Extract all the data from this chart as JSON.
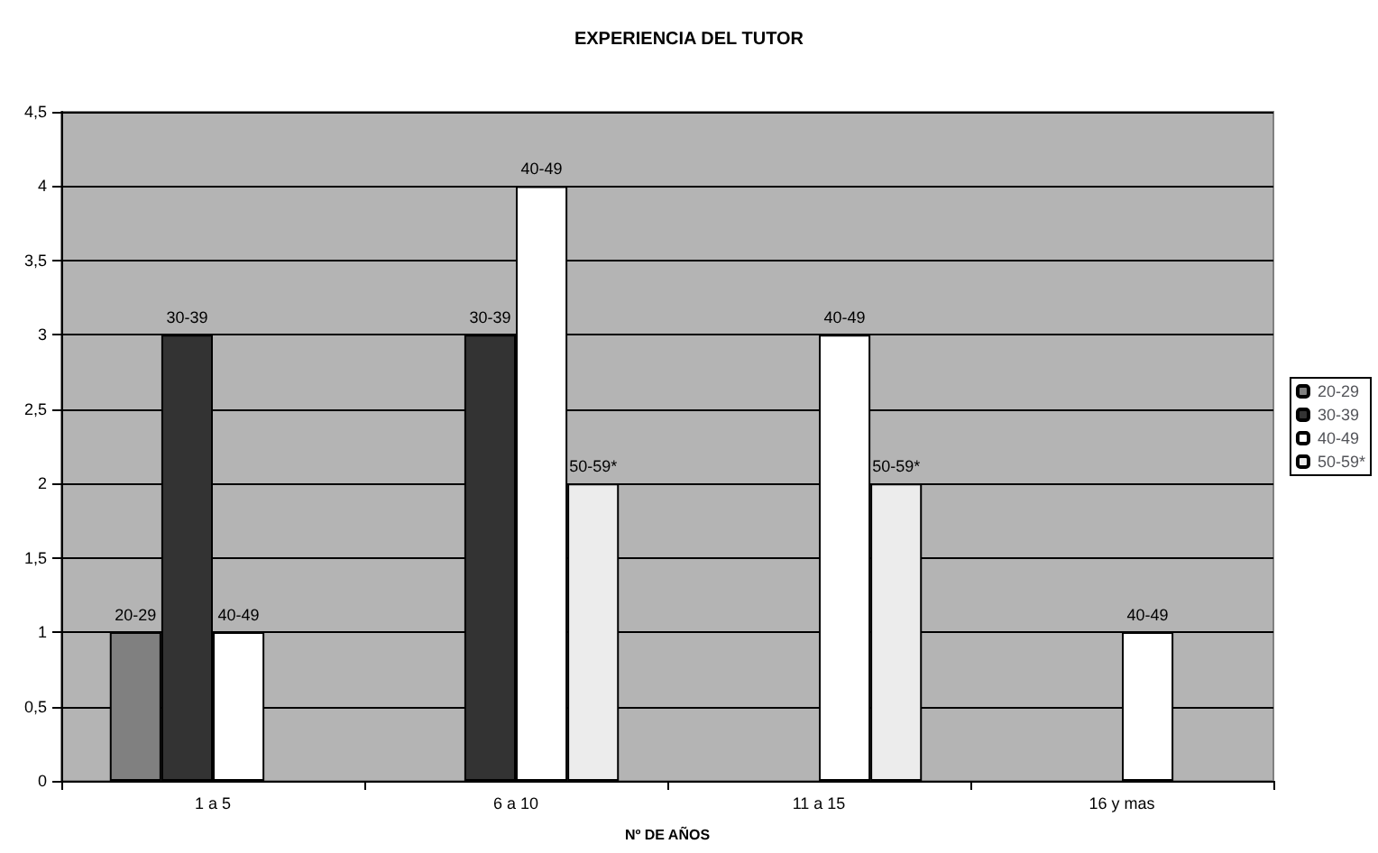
{
  "chart_data": {
    "type": "bar",
    "title": "EXPERIENCIA DEL TUTOR",
    "xlabel": "Nº DE AÑOS",
    "categories": [
      "1 a 5",
      "6 a 10",
      "11 a 15",
      "16 y mas"
    ],
    "series": [
      {
        "name": "20-29",
        "color": "#808080",
        "values": [
          1,
          null,
          null,
          null
        ],
        "value_labels": [
          "20-29",
          null,
          null,
          null
        ]
      },
      {
        "name": "30-39",
        "color": "#333333",
        "values": [
          3,
          3,
          null,
          null
        ],
        "value_labels": [
          "30-39",
          "30-39",
          null,
          null
        ]
      },
      {
        "name": "40-49",
        "color": "#ffffff",
        "values": [
          1,
          4,
          3,
          1
        ],
        "value_labels": [
          "40-49",
          "40-49",
          "40-49",
          "40-49"
        ]
      },
      {
        "name": "50-59*",
        "color": "#ececec",
        "values": [
          null,
          2,
          2,
          null
        ],
        "value_labels": [
          null,
          "50-59*",
          "50-59*",
          null
        ]
      }
    ],
    "ylim": [
      0,
      4.5
    ],
    "yticks": [
      0,
      {
        "value": 0.5,
        "label": "0,5"
      },
      1,
      {
        "value": 1.5,
        "label": "1,5"
      },
      2,
      {
        "value": 2.5,
        "label": "2,5"
      },
      3,
      {
        "value": 3.5,
        "label": "3,5"
      },
      4,
      {
        "value": 4.5,
        "label": "4,5"
      }
    ],
    "grid": "y",
    "legend": "right"
  }
}
